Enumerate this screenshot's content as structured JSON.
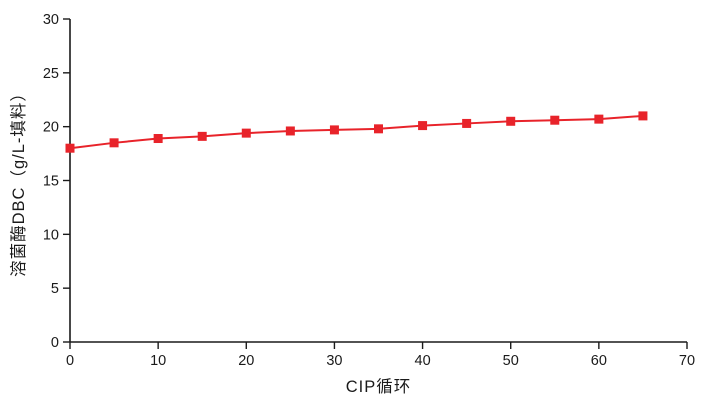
{
  "chart_data": {
    "type": "line",
    "title": "",
    "xlabel": "CIP循环",
    "ylabel": "溶菌酶DBC（g/L-填料）",
    "x": [
      0,
      5,
      10,
      15,
      20,
      25,
      30,
      35,
      40,
      45,
      50,
      55,
      60,
      65
    ],
    "series": [
      {
        "name": "溶菌酶DBC",
        "values": [
          18.0,
          18.5,
          18.9,
          19.1,
          19.4,
          19.6,
          19.7,
          19.8,
          20.1,
          20.3,
          20.5,
          20.6,
          20.7,
          21.0
        ],
        "color": "#e8232a",
        "marker": "square"
      }
    ],
    "xlim": [
      0,
      70
    ],
    "ylim": [
      0,
      30
    ],
    "xticks": [
      0,
      10,
      20,
      30,
      40,
      50,
      60,
      70
    ],
    "yticks": [
      0,
      5,
      10,
      15,
      20,
      25,
      30
    ],
    "grid": false,
    "legend": "none"
  },
  "colors": {
    "series_red": "#e8232a",
    "axis": "#1a1a1a",
    "background": "#ffffff"
  }
}
